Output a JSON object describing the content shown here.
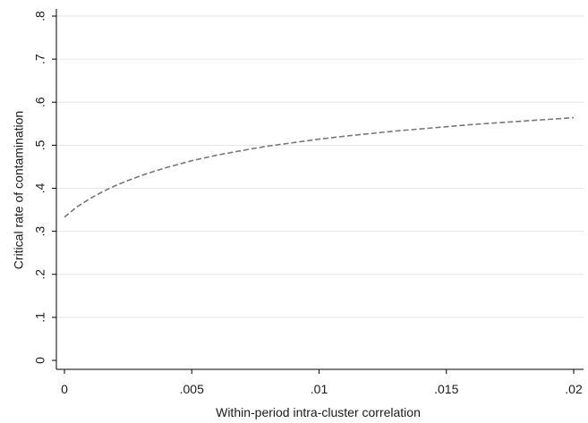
{
  "chart_data": {
    "type": "line",
    "title": "",
    "xlabel": "Within-period intra-cluster correlation",
    "ylabel": "Critical rate of contamination",
    "xlim": [
      0,
      0.02
    ],
    "ylim": [
      0,
      0.8
    ],
    "x_ticks": [
      {
        "value": 0,
        "label": "0"
      },
      {
        "value": 0.005,
        "label": ".005"
      },
      {
        "value": 0.01,
        "label": ".01"
      },
      {
        "value": 0.015,
        "label": ".015"
      },
      {
        "value": 0.02,
        "label": ".02"
      }
    ],
    "y_ticks": [
      {
        "value": 0,
        "label": "0"
      },
      {
        "value": 0.1,
        "label": ".1"
      },
      {
        "value": 0.2,
        "label": ".2"
      },
      {
        "value": 0.3,
        "label": ".3"
      },
      {
        "value": 0.4,
        "label": ".4"
      },
      {
        "value": 0.5,
        "label": ".5"
      },
      {
        "value": 0.6,
        "label": ".6"
      },
      {
        "value": 0.7,
        "label": ".7"
      },
      {
        "value": 0.8,
        "label": ".8"
      }
    ],
    "grid": true,
    "legend": "none",
    "series": [
      {
        "style": "dashed",
        "color": "#777777",
        "x": [
          0,
          0.0005,
          0.001,
          0.0015,
          0.002,
          0.0025,
          0.003,
          0.0035,
          0.004,
          0.0045,
          0.005,
          0.006,
          0.007,
          0.008,
          0.009,
          0.01,
          0.011,
          0.012,
          0.013,
          0.014,
          0.015,
          0.016,
          0.017,
          0.018,
          0.019,
          0.02
        ],
        "y": [
          0.333,
          0.357,
          0.376,
          0.392,
          0.406,
          0.418,
          0.429,
          0.439,
          0.448,
          0.456,
          0.464,
          0.477,
          0.488,
          0.498,
          0.506,
          0.514,
          0.521,
          0.527,
          0.533,
          0.538,
          0.543,
          0.548,
          0.552,
          0.556,
          0.56,
          0.564
        ]
      }
    ]
  }
}
